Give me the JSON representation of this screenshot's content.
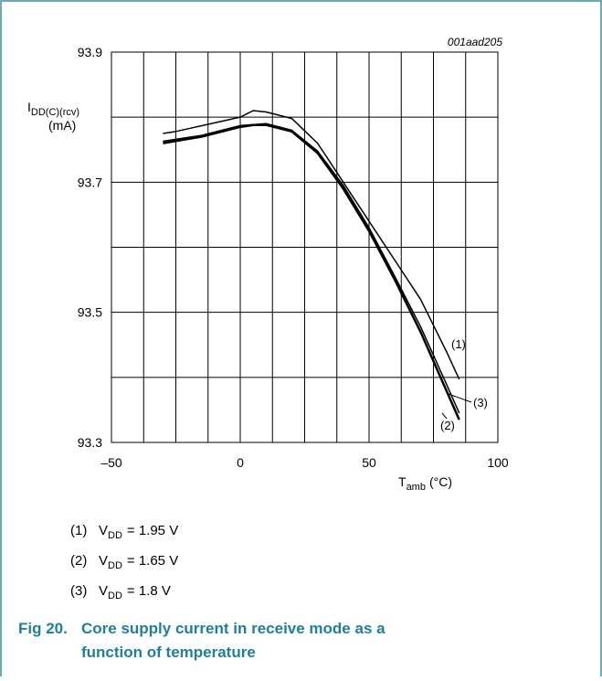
{
  "chart_data": {
    "type": "line",
    "code": "001aad205",
    "y_label": {
      "main": "I",
      "sub": "DD(C)(rcv)",
      "unit": "(mA)"
    },
    "x_label": {
      "main": "T",
      "sub": "amb",
      "unit": "(°C)"
    },
    "xlim": [
      -50,
      100
    ],
    "xticks": [
      {
        "value": -50,
        "label": "–50"
      },
      0,
      50,
      100
    ],
    "ylim": [
      93.3,
      93.9
    ],
    "yticks": [
      93.3,
      93.5,
      93.7,
      93.9
    ],
    "grid": true,
    "series": [
      {
        "name": "(1)",
        "color": "#000000",
        "width": 1.5,
        "legend": {
          "symbol": "V",
          "sub": "DD",
          "text": "= 1.95 V"
        },
        "x": [
          -30,
          -25,
          0,
          5,
          10,
          20,
          30,
          40,
          50,
          60,
          70,
          80,
          85
        ],
        "values": [
          93.775,
          93.778,
          93.8,
          93.81,
          93.808,
          93.798,
          93.76,
          93.7,
          93.64,
          93.58,
          93.52,
          93.44,
          93.397
        ]
      },
      {
        "name": "(2)",
        "color": "#000000",
        "width": 2.5,
        "legend": {
          "symbol": "V",
          "sub": "DD",
          "text": "= 1.65 V"
        },
        "x": [
          -30,
          -15,
          0,
          5,
          10,
          20,
          30,
          40,
          50,
          60,
          70,
          80,
          85
        ],
        "values": [
          93.76,
          93.77,
          93.785,
          93.788,
          93.788,
          93.778,
          93.745,
          93.69,
          93.625,
          93.55,
          93.47,
          93.38,
          93.335
        ]
      },
      {
        "name": "(3)",
        "color": "#000000",
        "width": 1.5,
        "legend": {
          "symbol": "V",
          "sub": "DD",
          "text": "= 1.8 V"
        },
        "x": [
          -30,
          -15,
          0,
          10,
          20,
          30,
          40,
          50,
          60,
          70,
          80,
          85
        ],
        "values": [
          93.763,
          93.772,
          93.787,
          93.79,
          93.78,
          93.748,
          93.695,
          93.63,
          93.555,
          93.478,
          93.39,
          93.345
        ]
      }
    ],
    "caption": {
      "number": "Fig 20.",
      "line1": "Core supply current in receive mode as a",
      "line2": "function of temperature"
    }
  }
}
